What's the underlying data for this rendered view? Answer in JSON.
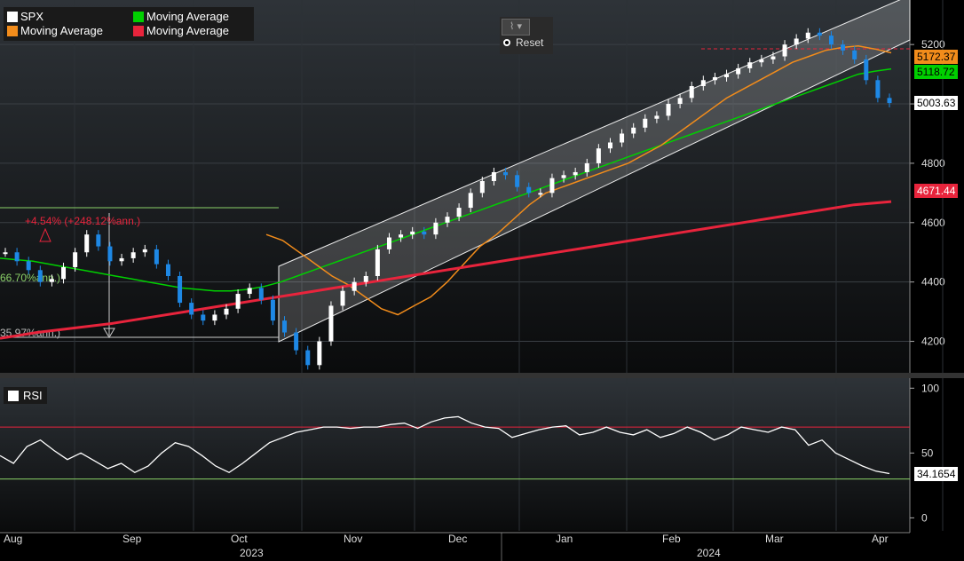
{
  "legend": {
    "items": [
      {
        "label": "SPX",
        "color": "#ffffff"
      },
      {
        "label": "Moving Average",
        "color": "#00d000"
      },
      {
        "label": "Moving Average",
        "color": "#f28c1b"
      },
      {
        "label": "Moving Average",
        "color": "#e8243c"
      }
    ]
  },
  "toolbar": {
    "reset_label": "Reset",
    "chart_icon": "line-chart-icon"
  },
  "rsi_panel": {
    "label": "RSI",
    "last_value": "34.1654"
  },
  "price_tags": {
    "ma_orange": "5172.37",
    "ma_green": "5118.72",
    "last_price": "5003.63",
    "ma_red": "4671.44"
  },
  "annotations": {
    "gain": "+4.54% (+248.12%ann.)",
    "green_ann": "66.70%ann.)",
    "loss_ann": "35.97%ann.)"
  },
  "colors": {
    "ma_green": "#00d000",
    "ma_orange": "#f28c1b",
    "ma_red": "#e8243c",
    "up_candle": "#ffffff",
    "down_candle": "#1e88e5",
    "background": "#000000"
  },
  "chart_data": [
    {
      "type": "line",
      "title": "SPX",
      "y_ticks": [
        4200,
        4400,
        4600,
        4800,
        5000,
        5200
      ],
      "ylim": [
        4100,
        5350
      ],
      "x_ticks": [
        "Aug",
        "Sep",
        "Oct",
        "Nov",
        "Dec",
        "Jan",
        "Feb",
        "Mar",
        "Apr"
      ],
      "year_labels": [
        "2023",
        "2024"
      ],
      "series": [
        {
          "name": "SPX",
          "values": [
            4500,
            4470,
            4440,
            4400,
            4410,
            4450,
            4500,
            4560,
            4520,
            4470,
            4480,
            4500,
            4510,
            4460,
            4420,
            4330,
            4290,
            4270,
            4290,
            4310,
            4360,
            4380,
            4340,
            4270,
            4230,
            4170,
            4120,
            4200,
            4320,
            4370,
            4400,
            4420,
            4510,
            4550,
            4560,
            4570,
            4560,
            4600,
            4620,
            4650,
            4700,
            4740,
            4770,
            4760,
            4720,
            4700,
            4700,
            4750,
            4760,
            4770,
            4800,
            4850,
            4870,
            4900,
            4920,
            4950,
            4960,
            5000,
            5020,
            5060,
            5080,
            5090,
            5100,
            5120,
            5140,
            5150,
            5160,
            5200,
            5220,
            5240,
            5230,
            5200,
            5180,
            5150,
            5080,
            5020,
            5003
          ]
        },
        {
          "name": "Moving Average",
          "values": [
            4480,
            4475,
            4470,
            4460,
            4450,
            4440,
            4430,
            4420,
            4410,
            4400,
            4390,
            4380,
            4375,
            4370,
            4370,
            4375,
            4385,
            4400,
            4420,
            4440,
            4460,
            4480,
            4500,
            4520,
            4540,
            4560,
            4580,
            4600,
            4620,
            4640,
            4660,
            4680,
            4700,
            4720,
            4740,
            4760,
            4780,
            4800,
            4820,
            4840,
            4860,
            4880,
            4900,
            4920,
            4940,
            4960,
            4980,
            5000,
            5020,
            5040,
            5060,
            5080,
            5100,
            5110,
            5118
          ]
        },
        {
          "name": "Moving Average",
          "values": [
            4560,
            4540,
            4500,
            4460,
            4420,
            4390,
            4350,
            4310,
            4290,
            4320,
            4350,
            4400,
            4460,
            4520,
            4560,
            4610,
            4660,
            4700,
            4720,
            4740,
            4760,
            4780,
            4800,
            4830,
            4860,
            4900,
            4940,
            4980,
            5020,
            5050,
            5080,
            5110,
            5140,
            5160,
            5180,
            5190,
            5195,
            5185,
            5172
          ]
        },
        {
          "name": "Moving Average",
          "values": [
            4210,
            4230,
            4245,
            4260,
            4280,
            4300,
            4320,
            4340,
            4360,
            4380,
            4400,
            4420,
            4440,
            4460,
            4480,
            4500,
            4520,
            4540,
            4560,
            4580,
            4600,
            4620,
            4640,
            4660,
            4671
          ]
        }
      ]
    },
    {
      "type": "line",
      "title": "RSI",
      "y_ticks": [
        0,
        50,
        100
      ],
      "ylim": [
        -10,
        105
      ],
      "series": [
        {
          "name": "RSI",
          "values": [
            48,
            42,
            55,
            60,
            52,
            45,
            50,
            44,
            38,
            42,
            35,
            40,
            50,
            58,
            55,
            48,
            40,
            35,
            42,
            50,
            58,
            62,
            66,
            68,
            70,
            70,
            69,
            70,
            70,
            72,
            73,
            69,
            74,
            77,
            78,
            73,
            70,
            69,
            62,
            65,
            68,
            70,
            71,
            64,
            66,
            70,
            66,
            64,
            68,
            62,
            65,
            70,
            66,
            60,
            64,
            70,
            68,
            66,
            70,
            68,
            56,
            60,
            50,
            45,
            40,
            36,
            34.1654
          ]
        }
      ]
    }
  ]
}
